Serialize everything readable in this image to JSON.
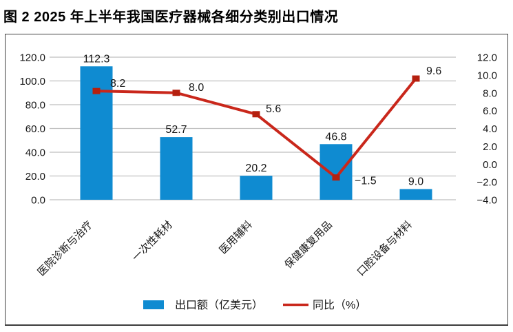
{
  "page_title": "图 2  2025 年上半年我国医疗器械各细分类别出口情况",
  "chart_data": {
    "type": "combo",
    "title": "2025 年上半年我国医疗器械各细分类别出口情况",
    "categories": [
      "医院诊断与治疗",
      "一次性耗材",
      "医用辅料",
      "保健康复用品",
      "口腔设备与材料"
    ],
    "series": [
      {
        "name": "出口额（亿美元）",
        "chart_type": "bar",
        "axis": "left",
        "color": "#0f8bd1",
        "values": [
          112.3,
          52.7,
          20.2,
          46.8,
          9.0
        ],
        "data_labels": [
          "112.3",
          "52.7",
          "20.2",
          "46.8",
          "9.0"
        ]
      },
      {
        "name": "同比（%）",
        "chart_type": "line",
        "axis": "right",
        "color": "#c9271b",
        "marker_color": "#b5200f",
        "values": [
          8.2,
          8.0,
          5.6,
          -1.5,
          9.6
        ],
        "data_labels": [
          "8.2",
          "8.0",
          "5.6",
          "−1.5",
          "9.6"
        ]
      }
    ],
    "left_axis": {
      "min": 0,
      "max": 120,
      "step": 20,
      "tick_labels": [
        "120.0",
        "100.0",
        "80.0",
        "60.0",
        "40.0",
        "20.0",
        "0.0"
      ]
    },
    "right_axis": {
      "min": -4,
      "max": 12,
      "step": 2,
      "tick_labels": [
        "12.0",
        "10.0",
        "8.0",
        "6.0",
        "4.0",
        "2.0",
        "0.0",
        "−2.0",
        "−4.0"
      ]
    },
    "grid": true,
    "legend_position": "bottom",
    "gridline_color": "#bfbfbf",
    "text_color": "#171717"
  }
}
